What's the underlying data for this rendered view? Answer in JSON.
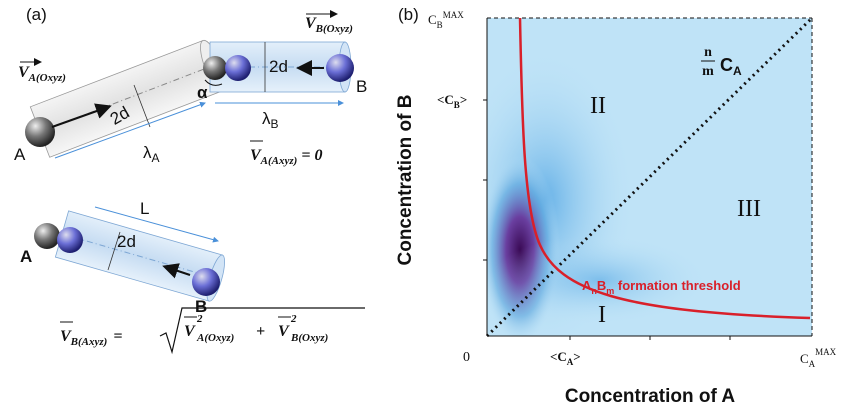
{
  "panel_a": {
    "label": "(a)",
    "top": {
      "v_b_oxyz": {
        "main": "V",
        "sub": "B(Oxyz)"
      },
      "v_a_oxyz": {
        "main": "V",
        "sub": "A(Oxyz)"
      },
      "diameter_b": "2d",
      "diameter_a": "2d",
      "angle": "α",
      "sphere_b": "B",
      "sphere_a": "A",
      "length_a": {
        "main": "λ",
        "sub": "A"
      },
      "length_b": {
        "main": "λ",
        "sub": "B"
      },
      "equation": {
        "main": "V",
        "sub": "A(Axyz)",
        "rhs": "= 0"
      }
    },
    "bottom": {
      "length": "L",
      "diameter": "2d",
      "sphere_a": "A",
      "sphere_b": "B",
      "equation": {
        "lhs_main": "V",
        "lhs_sub": "B(Axyz)",
        "eq": "=",
        "t1_main": "V",
        "t1_sub": "A(Oxyz)",
        "t1_sup": "2",
        "plus": "+",
        "t2_main": "V",
        "t2_sub": "B(Oxyz)",
        "t2_sup": "2"
      }
    }
  },
  "panel_b": {
    "label": "(b)",
    "x_axis_title": "Concentration of A",
    "y_axis_title": "Concentration of B",
    "origin": "0",
    "x_ticks": [
      {
        "main": "<C",
        "sub": "A",
        "end": ">"
      },
      {
        "main": "C",
        "sub": "A",
        "sup": "MAX"
      }
    ],
    "y_ticks": [
      {
        "main": "C",
        "sub": "B",
        "sup": "MAX"
      },
      {
        "main": "<C",
        "sub": "B",
        "end": ">"
      }
    ],
    "diagonal_label": {
      "num": "n",
      "den": "m",
      "main": "C",
      "sub": "A"
    },
    "regions": [
      "I",
      "II",
      "III"
    ],
    "threshold_label": {
      "a": "A",
      "n": "n",
      "b": "B",
      "m": "m",
      "rest": " formation threshold"
    }
  }
}
